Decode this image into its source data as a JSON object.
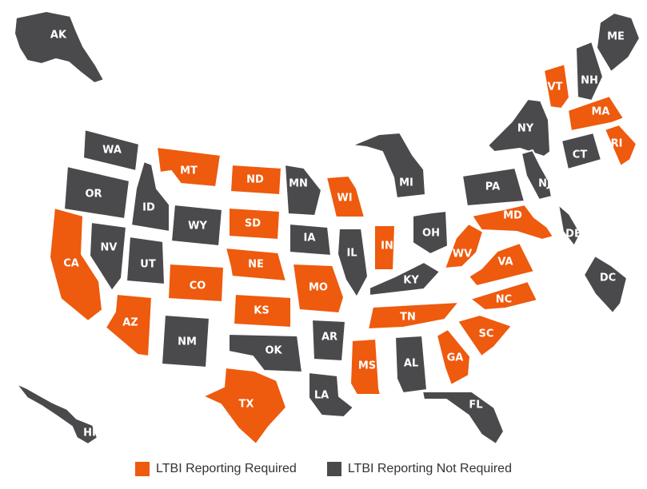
{
  "colors": {
    "required": "#EE5A0E",
    "not_required": "#4A4A4D"
  },
  "legend": {
    "required_label": "LTBI Reporting Required",
    "not_required_label": "LTBI Reporting Not Required"
  },
  "states": [
    {
      "code": "AK",
      "status": "not_required"
    },
    {
      "code": "HI",
      "status": "not_required"
    },
    {
      "code": "WA",
      "status": "not_required"
    },
    {
      "code": "OR",
      "status": "not_required"
    },
    {
      "code": "CA",
      "status": "required"
    },
    {
      "code": "ID",
      "status": "not_required"
    },
    {
      "code": "NV",
      "status": "not_required"
    },
    {
      "code": "MT",
      "status": "required"
    },
    {
      "code": "WY",
      "status": "not_required"
    },
    {
      "code": "UT",
      "status": "not_required"
    },
    {
      "code": "AZ",
      "status": "required"
    },
    {
      "code": "CO",
      "status": "required"
    },
    {
      "code": "NM",
      "status": "not_required"
    },
    {
      "code": "ND",
      "status": "required"
    },
    {
      "code": "SD",
      "status": "required"
    },
    {
      "code": "NE",
      "status": "required"
    },
    {
      "code": "KS",
      "status": "required"
    },
    {
      "code": "OK",
      "status": "not_required"
    },
    {
      "code": "TX",
      "status": "required"
    },
    {
      "code": "MN",
      "status": "not_required"
    },
    {
      "code": "IA",
      "status": "not_required"
    },
    {
      "code": "MO",
      "status": "required"
    },
    {
      "code": "AR",
      "status": "not_required"
    },
    {
      "code": "LA",
      "status": "not_required"
    },
    {
      "code": "WI",
      "status": "required"
    },
    {
      "code": "IL",
      "status": "not_required"
    },
    {
      "code": "MI",
      "status": "not_required"
    },
    {
      "code": "IN",
      "status": "required"
    },
    {
      "code": "OH",
      "status": "not_required"
    },
    {
      "code": "KY",
      "status": "not_required"
    },
    {
      "code": "TN",
      "status": "required"
    },
    {
      "code": "MS",
      "status": "required"
    },
    {
      "code": "AL",
      "status": "not_required"
    },
    {
      "code": "GA",
      "status": "required"
    },
    {
      "code": "FL",
      "status": "not_required"
    },
    {
      "code": "SC",
      "status": "required"
    },
    {
      "code": "NC",
      "status": "required"
    },
    {
      "code": "VA",
      "status": "required"
    },
    {
      "code": "WV",
      "status": "required"
    },
    {
      "code": "PA",
      "status": "not_required"
    },
    {
      "code": "NY",
      "status": "not_required"
    },
    {
      "code": "VT",
      "status": "required"
    },
    {
      "code": "NH",
      "status": "not_required"
    },
    {
      "code": "ME",
      "status": "not_required"
    },
    {
      "code": "MA",
      "status": "required"
    },
    {
      "code": "RI",
      "status": "required"
    },
    {
      "code": "CT",
      "status": "not_required"
    },
    {
      "code": "NJ",
      "status": "not_required"
    },
    {
      "code": "DE",
      "status": "not_required"
    },
    {
      "code": "MD",
      "status": "required"
    },
    {
      "code": "DC",
      "status": "not_required"
    }
  ]
}
